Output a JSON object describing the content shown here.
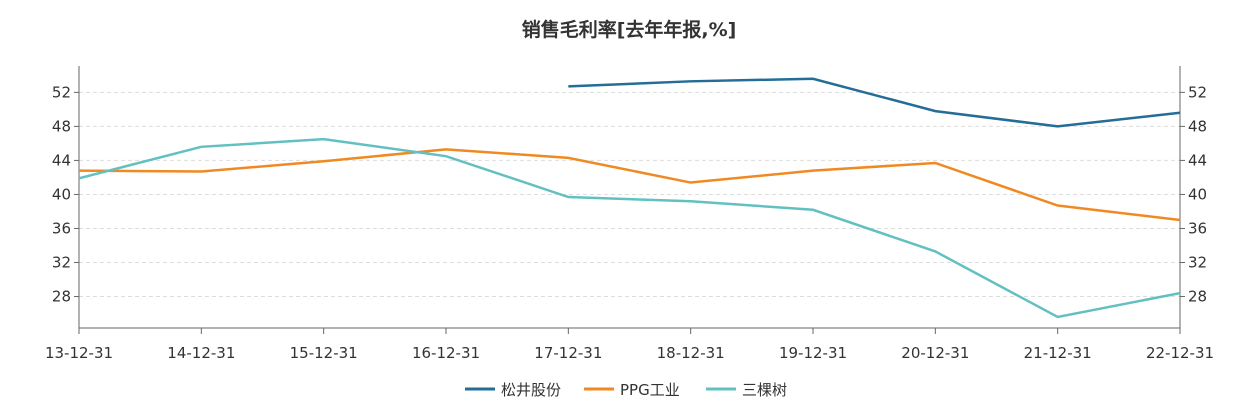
{
  "chart_data": {
    "type": "line",
    "title": "销售毛利率[去年年报,%]",
    "categories": [
      "13-12-31",
      "14-12-31",
      "15-12-31",
      "16-12-31",
      "17-12-31",
      "18-12-31",
      "19-12-31",
      "20-12-31",
      "21-12-31",
      "22-12-31"
    ],
    "ylim": [
      24.3,
      55.1
    ],
    "yticks": [
      28,
      32,
      36,
      40,
      44,
      48,
      52
    ],
    "grid": true,
    "legend_position": "bottom",
    "series": [
      {
        "name": "松井股份",
        "color": "#236d97",
        "values": [
          null,
          null,
          null,
          null,
          52.7,
          53.3,
          53.6,
          49.8,
          48.0,
          49.6
        ]
      },
      {
        "name": "PPG工业",
        "color": "#ef8a22",
        "values": [
          42.8,
          42.7,
          43.9,
          45.3,
          44.3,
          41.4,
          42.8,
          43.7,
          38.7,
          37.0
        ]
      },
      {
        "name": "三棵树",
        "color": "#62c0c2",
        "values": [
          41.9,
          45.6,
          46.5,
          44.5,
          39.7,
          39.2,
          38.2,
          33.3,
          25.6,
          28.4
        ]
      }
    ]
  }
}
